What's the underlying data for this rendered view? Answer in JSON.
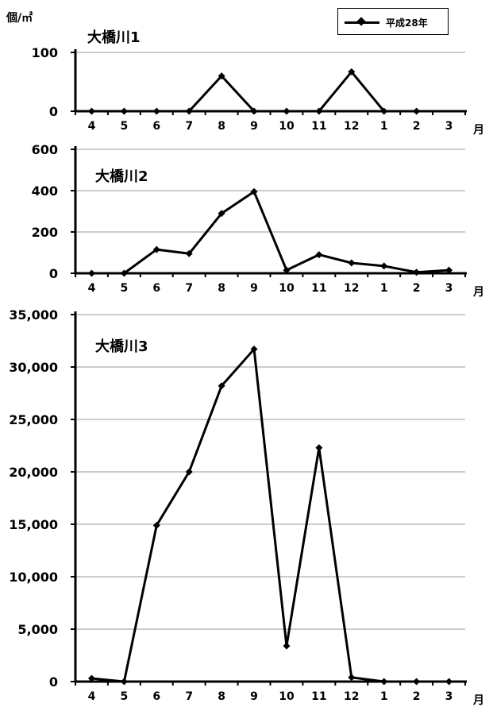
{
  "unit_label": "個/㎡",
  "legend": {
    "label": "平成28年"
  },
  "month_unit": "月",
  "chart_data": [
    {
      "type": "line",
      "title": "大橋川1",
      "categories": [
        "4",
        "5",
        "6",
        "7",
        "8",
        "9",
        "10",
        "11",
        "12",
        "1",
        "2",
        "3"
      ],
      "series": [
        {
          "name": "平成28年",
          "values": [
            0,
            0,
            0,
            0,
            60,
            0,
            0,
            0,
            67,
            0,
            0,
            null
          ]
        }
      ],
      "yticks": [
        {
          "v": 0,
          "label": "0"
        },
        {
          "v": 100,
          "label": "100"
        }
      ],
      "ylim": [
        0,
        100
      ],
      "grid": true
    },
    {
      "type": "line",
      "title": "大橋川2",
      "categories": [
        "4",
        "5",
        "6",
        "7",
        "8",
        "9",
        "10",
        "11",
        "12",
        "1",
        "2",
        "3"
      ],
      "series": [
        {
          "name": "平成28年",
          "values": [
            0,
            0,
            115,
            95,
            290,
            395,
            15,
            90,
            50,
            35,
            5,
            15
          ]
        }
      ],
      "yticks": [
        {
          "v": 0,
          "label": "0"
        },
        {
          "v": 200,
          "label": "200"
        },
        {
          "v": 400,
          "label": "400"
        },
        {
          "v": 600,
          "label": "600"
        }
      ],
      "ylim": [
        0,
        600
      ],
      "grid": true
    },
    {
      "type": "line",
      "title": "大橋川3",
      "categories": [
        "4",
        "5",
        "6",
        "7",
        "8",
        "9",
        "10",
        "11",
        "12",
        "1",
        "2",
        "3"
      ],
      "series": [
        {
          "name": "平成28年",
          "values": [
            300,
            0,
            14900,
            20000,
            28200,
            31700,
            3400,
            22300,
            400,
            0,
            0,
            0
          ]
        }
      ],
      "yticks": [
        {
          "v": 0,
          "label": "0"
        },
        {
          "v": 5000,
          "label": "5,000"
        },
        {
          "v": 10000,
          "label": "10,000"
        },
        {
          "v": 15000,
          "label": "15,000"
        },
        {
          "v": 20000,
          "label": "20,000"
        },
        {
          "v": 25000,
          "label": "25,000"
        },
        {
          "v": 30000,
          "label": "30,000"
        },
        {
          "v": 35000,
          "label": "35,000"
        }
      ],
      "ylim": [
        0,
        35000
      ],
      "grid": true
    }
  ]
}
